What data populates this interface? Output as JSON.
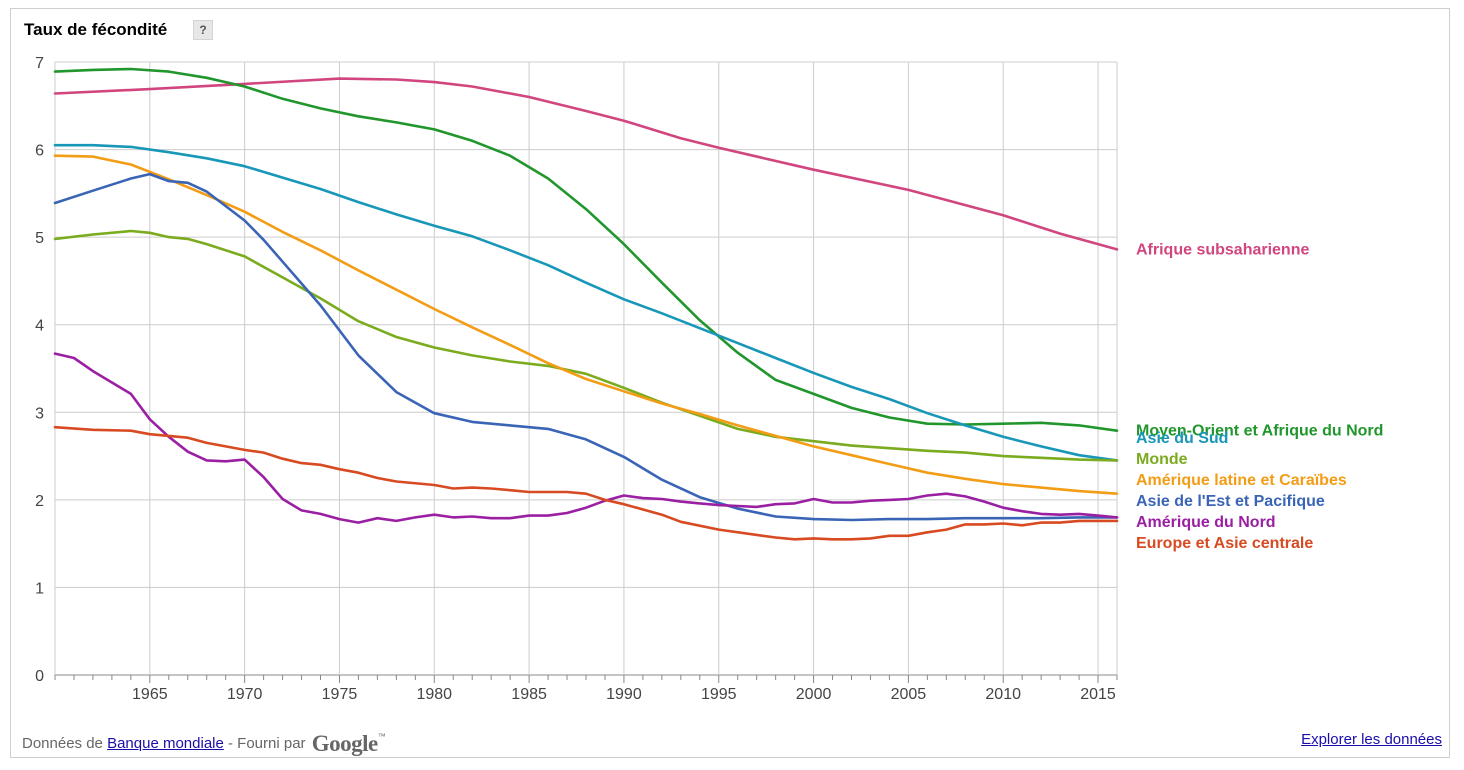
{
  "header": {
    "help_label": "?"
  },
  "footer": {
    "data_prefix": "Données de",
    "source_link": "Banque mondiale",
    "provided_by": "- Fourni par",
    "logo_text": "Google",
    "logo_tm": "™",
    "explore_link": "Explorer les données"
  },
  "colors": {
    "grid": "#cccccc",
    "axis": "#888888"
  },
  "chart_data": {
    "type": "line",
    "title": "Taux de fécondité",
    "xlabel": "",
    "ylabel": "",
    "xlim": [
      1960,
      2016
    ],
    "ylim": [
      0,
      7
    ],
    "yticks": [
      0,
      1,
      2,
      3,
      4,
      5,
      6,
      7
    ],
    "xticks": [
      1965,
      1970,
      1975,
      1980,
      1985,
      1990,
      1995,
      2000,
      2005,
      2010,
      2015
    ],
    "grid": true,
    "legend": "right",
    "series": [
      {
        "name": "Afrique subsaharienne",
        "color": "#d1467f",
        "points": [
          [
            1960,
            6.64
          ],
          [
            1965,
            6.69
          ],
          [
            1970,
            6.75
          ],
          [
            1975,
            6.81
          ],
          [
            1978,
            6.8
          ],
          [
            1980,
            6.77
          ],
          [
            1982,
            6.72
          ],
          [
            1985,
            6.6
          ],
          [
            1988,
            6.44
          ],
          [
            1990,
            6.33
          ],
          [
            1993,
            6.13
          ],
          [
            1995,
            6.02
          ],
          [
            2000,
            5.77
          ],
          [
            2005,
            5.54
          ],
          [
            2010,
            5.25
          ],
          [
            2013,
            5.04
          ],
          [
            2016,
            4.86
          ]
        ]
      },
      {
        "name": "Moyen-Orient et Afrique du Nord",
        "color": "#21962d",
        "points": [
          [
            1960,
            6.89
          ],
          [
            1962,
            6.91
          ],
          [
            1964,
            6.92
          ],
          [
            1966,
            6.89
          ],
          [
            1968,
            6.82
          ],
          [
            1970,
            6.72
          ],
          [
            1972,
            6.58
          ],
          [
            1974,
            6.47
          ],
          [
            1976,
            6.38
          ],
          [
            1978,
            6.31
          ],
          [
            1980,
            6.23
          ],
          [
            1982,
            6.1
          ],
          [
            1984,
            5.93
          ],
          [
            1986,
            5.67
          ],
          [
            1988,
            5.32
          ],
          [
            1990,
            4.92
          ],
          [
            1992,
            4.48
          ],
          [
            1994,
            4.05
          ],
          [
            1996,
            3.68
          ],
          [
            1998,
            3.37
          ],
          [
            2000,
            3.21
          ],
          [
            2002,
            3.05
          ],
          [
            2004,
            2.94
          ],
          [
            2006,
            2.87
          ],
          [
            2008,
            2.86
          ],
          [
            2010,
            2.87
          ],
          [
            2012,
            2.88
          ],
          [
            2014,
            2.85
          ],
          [
            2016,
            2.79
          ]
        ]
      },
      {
        "name": "Asie du Sud",
        "color": "#1897b8",
        "points": [
          [
            1960,
            6.05
          ],
          [
            1962,
            6.05
          ],
          [
            1964,
            6.03
          ],
          [
            1966,
            5.97
          ],
          [
            1968,
            5.9
          ],
          [
            1970,
            5.81
          ],
          [
            1972,
            5.68
          ],
          [
            1974,
            5.55
          ],
          [
            1976,
            5.4
          ],
          [
            1978,
            5.26
          ],
          [
            1980,
            5.13
          ],
          [
            1982,
            5.01
          ],
          [
            1984,
            4.85
          ],
          [
            1986,
            4.68
          ],
          [
            1988,
            4.48
          ],
          [
            1990,
            4.29
          ],
          [
            1992,
            4.13
          ],
          [
            1994,
            3.96
          ],
          [
            1996,
            3.79
          ],
          [
            1998,
            3.62
          ],
          [
            2000,
            3.45
          ],
          [
            2002,
            3.29
          ],
          [
            2004,
            3.15
          ],
          [
            2006,
            2.99
          ],
          [
            2008,
            2.85
          ],
          [
            2010,
            2.72
          ],
          [
            2012,
            2.61
          ],
          [
            2014,
            2.51
          ],
          [
            2016,
            2.45
          ]
        ]
      },
      {
        "name": "Monde",
        "color": "#7bab1e",
        "points": [
          [
            1960,
            4.98
          ],
          [
            1962,
            5.03
          ],
          [
            1964,
            5.07
          ],
          [
            1965,
            5.05
          ],
          [
            1966,
            5.0
          ],
          [
            1967,
            4.98
          ],
          [
            1968,
            4.92
          ],
          [
            1970,
            4.78
          ],
          [
            1972,
            4.54
          ],
          [
            1974,
            4.3
          ],
          [
            1976,
            4.04
          ],
          [
            1978,
            3.86
          ],
          [
            1980,
            3.74
          ],
          [
            1982,
            3.65
          ],
          [
            1984,
            3.58
          ],
          [
            1986,
            3.53
          ],
          [
            1988,
            3.44
          ],
          [
            1990,
            3.28
          ],
          [
            1992,
            3.11
          ],
          [
            1994,
            2.96
          ],
          [
            1996,
            2.81
          ],
          [
            1998,
            2.72
          ],
          [
            2000,
            2.67
          ],
          [
            2002,
            2.62
          ],
          [
            2004,
            2.59
          ],
          [
            2006,
            2.56
          ],
          [
            2008,
            2.54
          ],
          [
            2010,
            2.5
          ],
          [
            2012,
            2.48
          ],
          [
            2014,
            2.46
          ],
          [
            2016,
            2.45
          ]
        ]
      },
      {
        "name": "Amérique latine et Caraïbes",
        "color": "#f39c15",
        "points": [
          [
            1960,
            5.93
          ],
          [
            1962,
            5.92
          ],
          [
            1964,
            5.83
          ],
          [
            1966,
            5.66
          ],
          [
            1968,
            5.48
          ],
          [
            1970,
            5.29
          ],
          [
            1972,
            5.06
          ],
          [
            1974,
            4.85
          ],
          [
            1976,
            4.62
          ],
          [
            1978,
            4.4
          ],
          [
            1980,
            4.18
          ],
          [
            1982,
            3.97
          ],
          [
            1984,
            3.77
          ],
          [
            1986,
            3.56
          ],
          [
            1988,
            3.38
          ],
          [
            1990,
            3.24
          ],
          [
            1992,
            3.1
          ],
          [
            1994,
            2.98
          ],
          [
            1996,
            2.85
          ],
          [
            1998,
            2.73
          ],
          [
            2000,
            2.61
          ],
          [
            2002,
            2.51
          ],
          [
            2004,
            2.41
          ],
          [
            2006,
            2.31
          ],
          [
            2008,
            2.24
          ],
          [
            2010,
            2.18
          ],
          [
            2012,
            2.14
          ],
          [
            2014,
            2.1
          ],
          [
            2016,
            2.07
          ]
        ]
      },
      {
        "name": "Asie de l'Est et Pacifique",
        "color": "#3a64b6",
        "points": [
          [
            1960,
            5.39
          ],
          [
            1962,
            5.53
          ],
          [
            1964,
            5.67
          ],
          [
            1965,
            5.72
          ],
          [
            1966,
            5.64
          ],
          [
            1967,
            5.62
          ],
          [
            1968,
            5.52
          ],
          [
            1970,
            5.19
          ],
          [
            1971,
            4.97
          ],
          [
            1972,
            4.72
          ],
          [
            1974,
            4.22
          ],
          [
            1976,
            3.65
          ],
          [
            1978,
            3.23
          ],
          [
            1980,
            2.99
          ],
          [
            1982,
            2.89
          ],
          [
            1984,
            2.85
          ],
          [
            1986,
            2.81
          ],
          [
            1988,
            2.69
          ],
          [
            1990,
            2.49
          ],
          [
            1992,
            2.23
          ],
          [
            1994,
            2.03
          ],
          [
            1996,
            1.9
          ],
          [
            1998,
            1.81
          ],
          [
            2000,
            1.78
          ],
          [
            2002,
            1.77
          ],
          [
            2004,
            1.78
          ],
          [
            2006,
            1.78
          ],
          [
            2008,
            1.79
          ],
          [
            2010,
            1.79
          ],
          [
            2012,
            1.79
          ],
          [
            2014,
            1.8
          ],
          [
            2016,
            1.8
          ]
        ]
      },
      {
        "name": "Amérique du Nord",
        "color": "#9b1fa3",
        "points": [
          [
            1960,
            3.67
          ],
          [
            1961,
            3.62
          ],
          [
            1962,
            3.47
          ],
          [
            1963,
            3.34
          ],
          [
            1964,
            3.21
          ],
          [
            1965,
            2.92
          ],
          [
            1966,
            2.72
          ],
          [
            1967,
            2.55
          ],
          [
            1968,
            2.45
          ],
          [
            1969,
            2.44
          ],
          [
            1970,
            2.46
          ],
          [
            1971,
            2.26
          ],
          [
            1972,
            2.01
          ],
          [
            1973,
            1.88
          ],
          [
            1974,
            1.84
          ],
          [
            1975,
            1.78
          ],
          [
            1976,
            1.74
          ],
          [
            1977,
            1.79
          ],
          [
            1978,
            1.76
          ],
          [
            1979,
            1.8
          ],
          [
            1980,
            1.83
          ],
          [
            1981,
            1.8
          ],
          [
            1982,
            1.81
          ],
          [
            1983,
            1.79
          ],
          [
            1984,
            1.79
          ],
          [
            1985,
            1.82
          ],
          [
            1986,
            1.82
          ],
          [
            1987,
            1.85
          ],
          [
            1988,
            1.91
          ],
          [
            1989,
            1.99
          ],
          [
            1990,
            2.05
          ],
          [
            1991,
            2.02
          ],
          [
            1992,
            2.01
          ],
          [
            1993,
            1.98
          ],
          [
            1994,
            1.96
          ],
          [
            1995,
            1.94
          ],
          [
            1996,
            1.93
          ],
          [
            1997,
            1.92
          ],
          [
            1998,
            1.95
          ],
          [
            1999,
            1.96
          ],
          [
            2000,
            2.01
          ],
          [
            2001,
            1.97
          ],
          [
            2002,
            1.97
          ],
          [
            2003,
            1.99
          ],
          [
            2004,
            2.0
          ],
          [
            2005,
            2.01
          ],
          [
            2006,
            2.05
          ],
          [
            2007,
            2.07
          ],
          [
            2008,
            2.04
          ],
          [
            2009,
            1.98
          ],
          [
            2010,
            1.91
          ],
          [
            2011,
            1.87
          ],
          [
            2012,
            1.84
          ],
          [
            2013,
            1.83
          ],
          [
            2014,
            1.84
          ],
          [
            2015,
            1.82
          ],
          [
            2016,
            1.8
          ]
        ]
      },
      {
        "name": "Europe et Asie centrale",
        "color": "#d84a21",
        "points": [
          [
            1960,
            2.83
          ],
          [
            1962,
            2.8
          ],
          [
            1964,
            2.79
          ],
          [
            1965,
            2.75
          ],
          [
            1967,
            2.71
          ],
          [
            1968,
            2.65
          ],
          [
            1970,
            2.57
          ],
          [
            1971,
            2.54
          ],
          [
            1972,
            2.47
          ],
          [
            1973,
            2.42
          ],
          [
            1974,
            2.4
          ],
          [
            1975,
            2.35
          ],
          [
            1976,
            2.31
          ],
          [
            1977,
            2.25
          ],
          [
            1978,
            2.21
          ],
          [
            1980,
            2.17
          ],
          [
            1981,
            2.13
          ],
          [
            1982,
            2.14
          ],
          [
            1983,
            2.13
          ],
          [
            1984,
            2.11
          ],
          [
            1985,
            2.09
          ],
          [
            1987,
            2.09
          ],
          [
            1988,
            2.07
          ],
          [
            1989,
            2.0
          ],
          [
            1990,
            1.95
          ],
          [
            1992,
            1.83
          ],
          [
            1993,
            1.75
          ],
          [
            1995,
            1.66
          ],
          [
            1997,
            1.6
          ],
          [
            1998,
            1.57
          ],
          [
            1999,
            1.55
          ],
          [
            2000,
            1.56
          ],
          [
            2001,
            1.55
          ],
          [
            2002,
            1.55
          ],
          [
            2003,
            1.56
          ],
          [
            2004,
            1.59
          ],
          [
            2005,
            1.59
          ],
          [
            2006,
            1.63
          ],
          [
            2007,
            1.66
          ],
          [
            2008,
            1.72
          ],
          [
            2009,
            1.72
          ],
          [
            2010,
            1.73
          ],
          [
            2011,
            1.71
          ],
          [
            2012,
            1.74
          ],
          [
            2013,
            1.74
          ],
          [
            2014,
            1.76
          ],
          [
            2015,
            1.76
          ],
          [
            2016,
            1.76
          ]
        ]
      }
    ]
  }
}
